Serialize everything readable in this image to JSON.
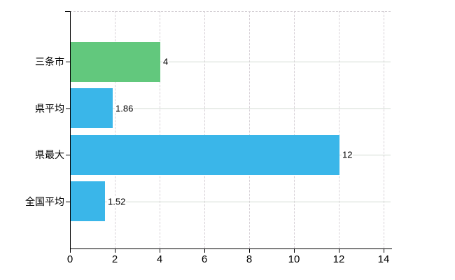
{
  "chart_data": {
    "type": "bar",
    "orientation": "horizontal",
    "title": "",
    "xlabel": "",
    "ylabel": "",
    "categories": [
      "三条市",
      "県平均",
      "県最大",
      "全国平均"
    ],
    "values": [
      4,
      1.86,
      12,
      1.52
    ],
    "value_labels": [
      "4",
      "1.86",
      "12",
      "1.52"
    ],
    "bar_colors": [
      "#62c87d",
      "#3ab6e9",
      "#3ab6e9",
      "#3ab6e9"
    ],
    "x_ticks": [
      0,
      2,
      4,
      6,
      8,
      10,
      12,
      14
    ],
    "x_tick_labels": [
      "0",
      "2",
      "4",
      "6",
      "8",
      "10",
      "12",
      "14"
    ],
    "xlim": [
      0,
      14.3
    ],
    "grid": {
      "horizontal": true,
      "vertical": true
    },
    "legend": "none",
    "colors": {
      "background": "#ffffff",
      "axis": "#000000",
      "gridline_horizontal": "#d2dad2",
      "gridline_vertical": "#d6d0d6",
      "text": "#000000"
    }
  }
}
